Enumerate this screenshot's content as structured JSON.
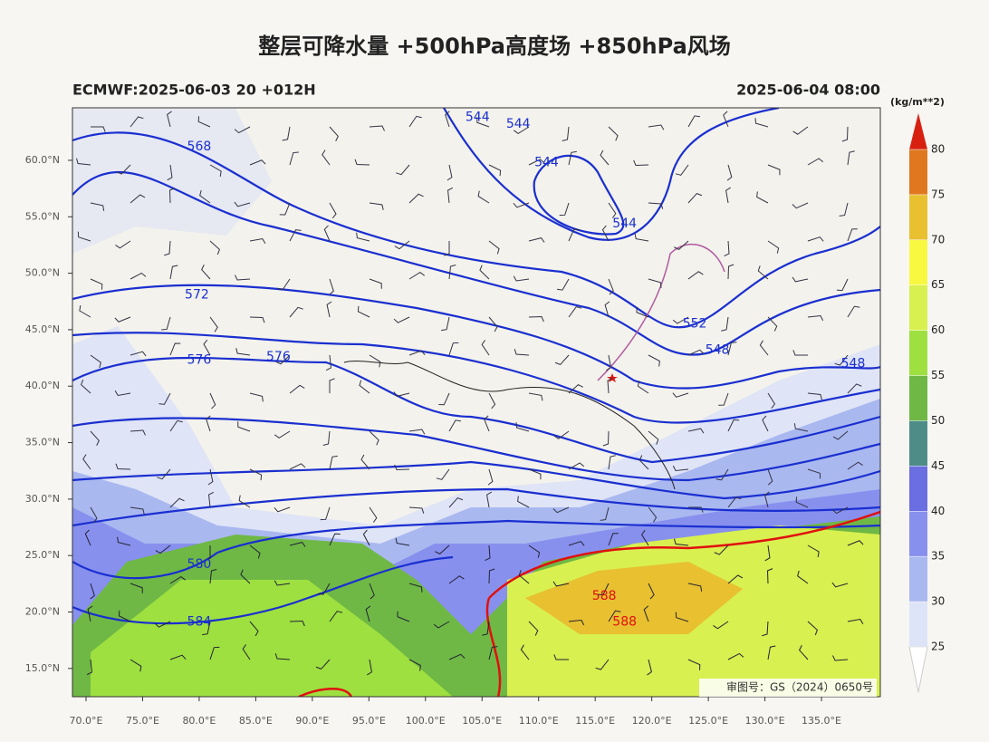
{
  "title": "整层可降水量 +500hPa高度场 +850hPa风场",
  "subtitle_left": "ECMWF:2025-06-03 20 +012H",
  "subtitle_right": "2025-06-04 08:00",
  "approval": "审图号：GS（2024）0650号",
  "map": {
    "lon_ticks": [
      {
        "value": 70,
        "label": "70.0°E"
      },
      {
        "value": 75,
        "label": "75.0°E"
      },
      {
        "value": 80,
        "label": "80.0°E"
      },
      {
        "value": 85,
        "label": "85.0°E"
      },
      {
        "value": 90,
        "label": "90.0°E"
      },
      {
        "value": 95,
        "label": "95.0°E"
      },
      {
        "value": 100,
        "label": "100.0°E"
      },
      {
        "value": 105,
        "label": "105.0°E"
      },
      {
        "value": 110,
        "label": "110.0°E"
      },
      {
        "value": 115,
        "label": "115.0°E"
      },
      {
        "value": 120,
        "label": "120.0°E"
      },
      {
        "value": 125,
        "label": "125.0°E"
      },
      {
        "value": 130,
        "label": "130.0°E"
      },
      {
        "value": 135,
        "label": "135.0°E"
      }
    ],
    "lat_ticks": [
      {
        "value": 15,
        "label": "15.0°N"
      },
      {
        "value": 20,
        "label": "20.0°N"
      },
      {
        "value": 25,
        "label": "25.0°N"
      },
      {
        "value": 30,
        "label": "30.0°N"
      },
      {
        "value": 35,
        "label": "35.0°N"
      },
      {
        "value": 40,
        "label": "40.0°N"
      },
      {
        "value": 45,
        "label": "45.0°N"
      },
      {
        "value": 50,
        "label": "50.0°N"
      },
      {
        "value": 55,
        "label": "55.0°N"
      },
      {
        "value": 60,
        "label": "60.0°N"
      }
    ],
    "lonlim": [
      68.8,
      140.2
    ],
    "latlim": [
      12.5,
      64.65
    ],
    "contour_labels": [
      {
        "value": 544,
        "lon": 104.6,
        "lat": 63.8,
        "color": "#1a2fd0"
      },
      {
        "value": 544,
        "lon": 108.2,
        "lat": 63.2,
        "color": "#1a2fd0"
      },
      {
        "value": 544,
        "lon": 110.7,
        "lat": 59.8,
        "color": "#1a2fd0"
      },
      {
        "value": 544,
        "lon": 117.6,
        "lat": 54.4,
        "color": "#1a2fd0"
      },
      {
        "value": 568,
        "lon": 80.0,
        "lat": 61.2,
        "color": "#1a2fd0"
      },
      {
        "value": 572,
        "lon": 79.8,
        "lat": 48.1,
        "color": "#1a2fd0"
      },
      {
        "value": 576,
        "lon": 80.0,
        "lat": 42.3,
        "color": "#1a2fd0"
      },
      {
        "value": 576,
        "lon": 87.0,
        "lat": 42.6,
        "color": "#1a2fd0"
      },
      {
        "value": 552,
        "lon": 123.8,
        "lat": 45.5,
        "color": "#1a2fd0"
      },
      {
        "value": 548,
        "lon": 125.8,
        "lat": 43.2,
        "color": "#1a2fd0"
      },
      {
        "value": 548,
        "lon": 137.8,
        "lat": 42.0,
        "color": "#1a2fd0"
      },
      {
        "value": 580,
        "lon": 80.0,
        "lat": 24.2,
        "color": "#1a2fd0"
      },
      {
        "value": 584,
        "lon": 80.0,
        "lat": 19.1,
        "color": "#1a2fd0"
      },
      {
        "value": 588,
        "lon": 115.8,
        "lat": 21.4,
        "color": "#e01010"
      },
      {
        "value": 588,
        "lon": 117.6,
        "lat": 19.1,
        "color": "#e01010"
      }
    ]
  },
  "colorbar": {
    "unit": "(kg/m**2)",
    "ticks": [
      25,
      30,
      35,
      40,
      45,
      50,
      55,
      60,
      65,
      70,
      75,
      80
    ],
    "colors": [
      "#dde4f8",
      "#aab8f0",
      "#8890ee",
      "#6a6ee0",
      "#4e8c88",
      "#6fb845",
      "#9ee040",
      "#d8f050",
      "#f8f840",
      "#e8c030",
      "#e07820"
    ],
    "over_color": "#d82010",
    "under_color": "#ffffff"
  }
}
